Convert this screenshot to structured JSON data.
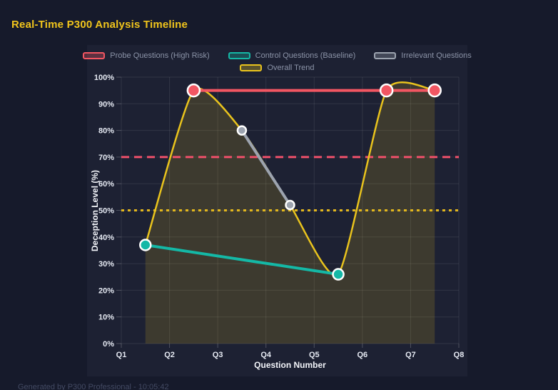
{
  "page": {
    "title": "Real-Time P300 Analysis Timeline",
    "footer": "Generated by P300 Professional - 10:05:42"
  },
  "chart_data": {
    "type": "line",
    "title": "Real-Time P300 Analysis Timeline",
    "xlabel": "Question Number",
    "ylabel": "Deception Level (%)",
    "x_ticks": [
      "Q1",
      "Q2",
      "Q3",
      "Q4",
      "Q5",
      "Q6",
      "Q7",
      "Q8"
    ],
    "y_ticks": [
      "0%",
      "10%",
      "20%",
      "30%",
      "40%",
      "50%",
      "60%",
      "70%",
      "80%",
      "90%",
      "100%"
    ],
    "xlim": [
      1,
      8
    ],
    "ylim": [
      0,
      100
    ],
    "grid": true,
    "legend_position": "top",
    "series": [
      {
        "name": "Probe Questions (High Risk)",
        "color": "#f25662",
        "style": "line+points",
        "points": [
          [
            2.5,
            95
          ],
          [
            6.5,
            95
          ],
          [
            7.5,
            95
          ]
        ],
        "point_radius": 8.5,
        "line_width": 4
      },
      {
        "name": "Control Questions (Baseline)",
        "color": "#14b8a6",
        "style": "line+points",
        "points": [
          [
            1.5,
            37
          ],
          [
            5.5,
            26
          ]
        ],
        "point_radius": 7.5,
        "line_width": 4
      },
      {
        "name": "Irrelevant Questions",
        "color": "#9ca3af",
        "style": "line+points",
        "points": [
          [
            3.5,
            80
          ],
          [
            4.5,
            52
          ]
        ],
        "point_radius": 6,
        "line_width": 4
      },
      {
        "name": "Overall Trend",
        "color": "#e9c31d",
        "style": "spline",
        "smooth": true,
        "fill": true,
        "fill_opacity": 0.16,
        "points": [
          [
            1.5,
            37
          ],
          [
            2.5,
            95
          ],
          [
            3.5,
            80
          ],
          [
            4.5,
            52
          ],
          [
            5.5,
            26
          ],
          [
            6.5,
            95
          ],
          [
            7.5,
            95
          ]
        ],
        "point_radius": 0,
        "line_width": 2.5
      }
    ],
    "thresholds": [
      {
        "value": 70,
        "color": "#f0506a",
        "dash": "dashed"
      },
      {
        "value": 50,
        "color": "#e3b71d",
        "dash": "dotted"
      }
    ]
  },
  "colors": {
    "page_bg": "#161a2b",
    "panel_bg": "#1d2133",
    "title_text": "#f0c41c",
    "axis_text": "#e5e9f2",
    "legend_text": "#8b93a7",
    "grid": "rgba(255,255,255,0.09)",
    "tick_mark": "rgba(255,255,255,0.22)",
    "point_border": "#ffffff",
    "footer_text": "#434a63"
  }
}
